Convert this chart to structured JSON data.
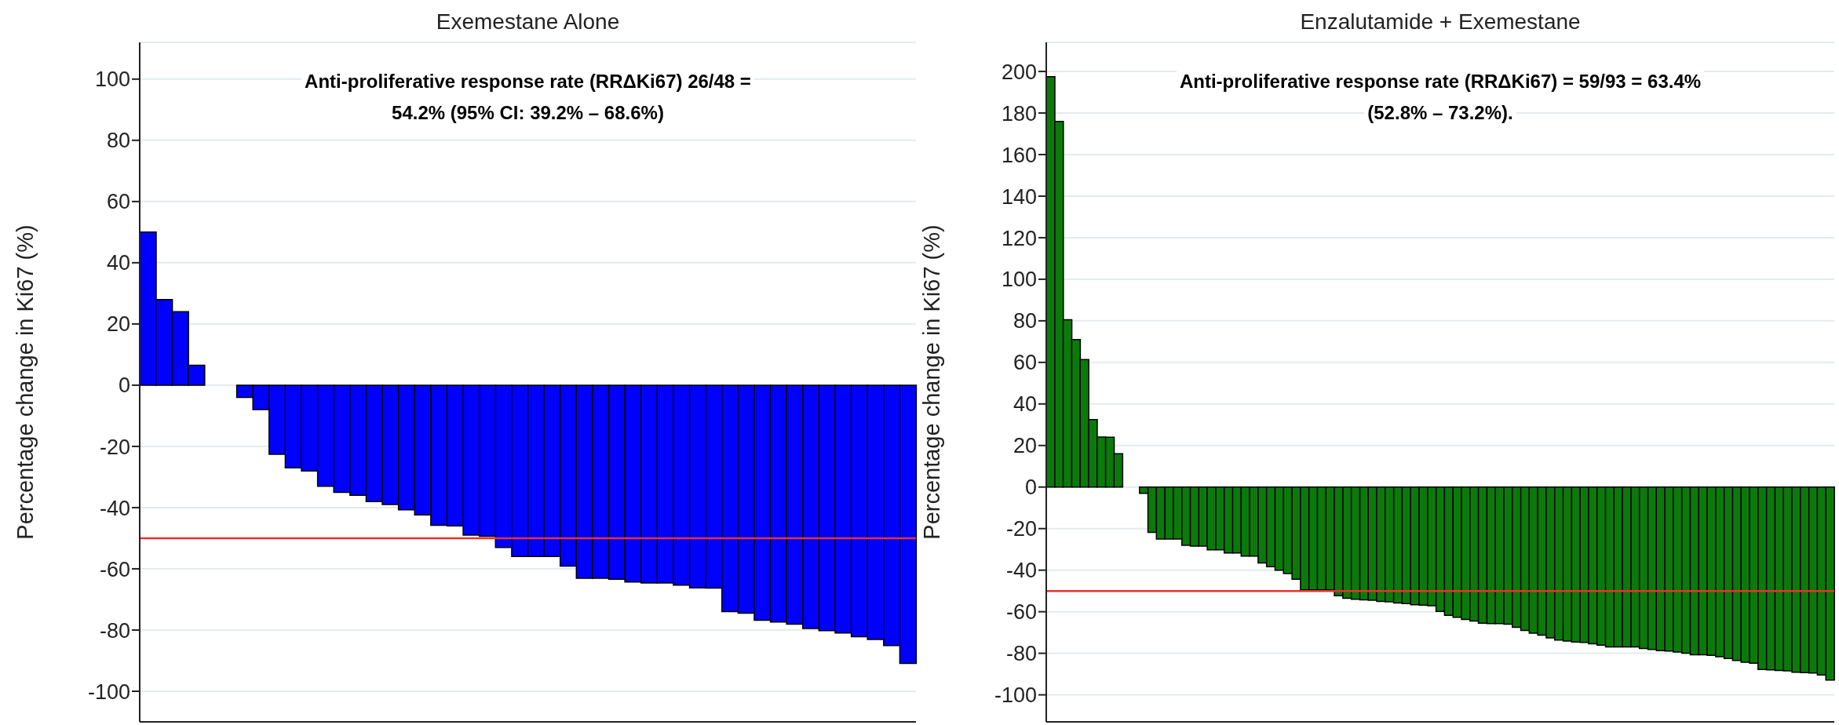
{
  "chart_data": [
    {
      "type": "bar",
      "title": "Exemestane Alone",
      "ylabel": "Percentage change in Ki67 (%)",
      "annotations": [
        "Anti-proliferative response rate (RRΔKi67) 26/48 =\n54.2% (95% CI: 39.2% – 68.6%)"
      ],
      "categories": [
        null,
        null,
        null,
        null,
        null,
        null,
        null,
        null,
        null,
        null,
        null,
        null,
        null,
        null,
        null,
        null,
        null,
        null,
        null,
        null,
        null,
        null,
        null,
        null,
        null,
        null,
        null,
        null,
        null,
        null,
        null,
        null,
        null,
        null,
        null,
        null,
        null,
        null,
        null,
        null,
        null,
        null,
        null,
        null,
        null,
        null,
        null,
        null
      ],
      "values": [
        50,
        28,
        24,
        6.5,
        0,
        0,
        -4,
        -8,
        -22.6,
        -27,
        -28,
        -33,
        -35,
        -36,
        -38,
        -39,
        -40.7,
        -42.4,
        -45.8,
        -46,
        -49,
        -49.4,
        -53,
        -56,
        -56,
        -56,
        -59.1,
        -63.1,
        -63.1,
        -63.4,
        -64.3,
        -64.6,
        -64.6,
        -65.3,
        -66.2,
        -66.3,
        -74,
        -74.5,
        -76.8,
        -77.4,
        -78.1,
        -79.5,
        -80.2,
        -81,
        -82.2,
        -83.1,
        -85.1,
        -90.9
      ],
      "color": "#0000ff",
      "ylim": [
        -110,
        112
      ],
      "yticks": [
        -100,
        -80,
        -60,
        -40,
        -20,
        0,
        20,
        40,
        60,
        80,
        100
      ],
      "ref_lines": [
        {
          "axis": "y",
          "value": -50,
          "color": "#e8332b"
        }
      ],
      "grid": "y",
      "legend": false,
      "tick_labels": "y"
    },
    {
      "type": "bar",
      "title": "Enzalutamide + Exemestane",
      "ylabel": "Percentage change in Ki67 (%)",
      "annotations": [
        "Anti-proliferative response rate (RRΔKi67) = 59/93 = 63.4%\n(52.8% – 73.2%)."
      ],
      "categories": [
        null,
        null,
        null,
        null,
        null,
        null,
        null,
        null,
        null,
        null,
        null,
        null,
        null,
        null,
        null,
        null,
        null,
        null,
        null,
        null,
        null,
        null,
        null,
        null,
        null,
        null,
        null,
        null,
        null,
        null,
        null,
        null,
        null,
        null,
        null,
        null,
        null,
        null,
        null,
        null,
        null,
        null,
        null,
        null,
        null,
        null,
        null,
        null,
        null,
        null,
        null,
        null,
        null,
        null,
        null,
        null,
        null,
        null,
        null,
        null,
        null,
        null,
        null,
        null,
        null,
        null,
        null,
        null,
        null,
        null,
        null,
        null,
        null,
        null,
        null,
        null,
        null,
        null,
        null,
        null,
        null,
        null,
        null,
        null,
        null,
        null,
        null,
        null,
        null,
        null,
        null,
        null,
        null
      ],
      "values": [
        197.5,
        176,
        80.5,
        71,
        61.4,
        32.5,
        24.1,
        24,
        16,
        0,
        0,
        -3,
        -21.8,
        -25,
        -25,
        -25,
        -28,
        -28.4,
        -28.4,
        -30.2,
        -30.2,
        -31.7,
        -31.7,
        -33.2,
        -33.2,
        -36.5,
        -38.3,
        -40,
        -41.6,
        -44.4,
        -49.5,
        -49.5,
        -49.5,
        -49.5,
        -52.3,
        -53.5,
        -54,
        -54.3,
        -54.5,
        -55,
        -55.2,
        -55.8,
        -56.1,
        -56.6,
        -56.8,
        -57.1,
        -59.9,
        -61.7,
        -62.7,
        -63.7,
        -64.5,
        -65.5,
        -65.7,
        -65.7,
        -66,
        -67.5,
        -69,
        -70.3,
        -71.3,
        -72.6,
        -73.6,
        -74.1,
        -74.6,
        -74.8,
        -75.4,
        -76.1,
        -76.9,
        -76.9,
        -76.9,
        -76.9,
        -77.7,
        -78.2,
        -78.7,
        -78.9,
        -79.4,
        -80,
        -80.7,
        -80.7,
        -81,
        -81.7,
        -82.5,
        -83.5,
        -84.3,
        -84.8,
        -87.8,
        -88,
        -88.3,
        -88.5,
        -89.1,
        -89.3,
        -89.5,
        -90.4,
        -92.9
      ],
      "color": "#0b7a0b",
      "ylim": [
        -113,
        214
      ],
      "yticks": [
        -100,
        -80,
        -60,
        -40,
        -20,
        0,
        20,
        40,
        60,
        80,
        100,
        120,
        140,
        160,
        180,
        200
      ],
      "ref_lines": [
        {
          "axis": "y",
          "value": -50,
          "color": "#e8332b"
        }
      ],
      "grid": "y",
      "legend": false,
      "tick_labels": "y"
    }
  ]
}
